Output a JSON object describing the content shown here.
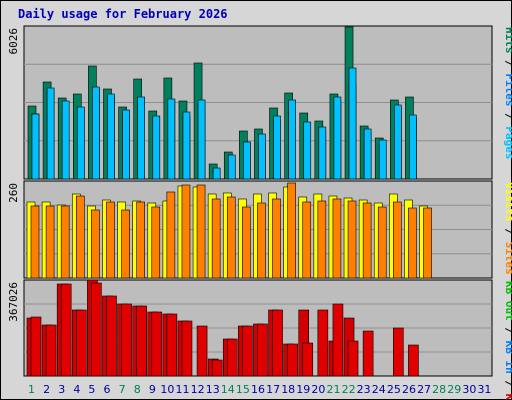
{
  "title": "Daily usage for February 2026",
  "colors": {
    "background": "#d6d6d6",
    "plot": "#bdbdbd",
    "gridline": "#8e8e8e",
    "hits": "#00805c",
    "files": "#0080ff",
    "pages": "#00c0ff",
    "visits": "#ffff00",
    "sites": "#ff8000",
    "kb_in": "#00c000",
    "kb_out": "#e00000",
    "kb_f": "#d00000",
    "weekend_day": "#00805c",
    "weekday_day": "#0000a0",
    "title": "#0000bb"
  },
  "chart_data": [
    {
      "type": "bar",
      "name": "hits-files-pages",
      "ymax_label": "6026",
      "ylim": [
        0,
        6026
      ],
      "legend": [
        {
          "label": "Pages",
          "color": "#00c0ff"
        },
        {
          "label": "Files",
          "color": "#0080ff"
        },
        {
          "label": "Hits",
          "color": "#00805c"
        }
      ],
      "separator": "/",
      "series": [
        {
          "name": "Hits",
          "values": [
            2870,
            3820,
            3190,
            3340,
            4440,
            3550,
            2840,
            3950,
            2660,
            3960,
            3060,
            4580,
            580,
            1070,
            1900,
            1960,
            2790,
            3390,
            2610,
            2270,
            3340,
            5990,
            2090,
            1600,
            3120,
            3210,
            0,
            0
          ]
        },
        {
          "name": "Files",
          "values": [
            2570,
            3480,
            3020,
            2810,
            3580,
            3230,
            2550,
            3010,
            2440,
            3100,
            2490,
            2900,
            360,
            920,
            1440,
            1430,
            2330,
            2680,
            2210,
            1880,
            3060,
            3760,
            1840,
            1370,
            2850,
            2400,
            0,
            0
          ]
        },
        {
          "name": "Pages",
          "values": [
            2570,
            3570,
            3080,
            2830,
            3630,
            3340,
            2710,
            3220,
            2500,
            3170,
            2640,
            3130,
            430,
            960,
            1470,
            1780,
            2480,
            3120,
            2240,
            2040,
            3240,
            4360,
            1960,
            1520,
            2930,
            2540,
            0,
            0
          ]
        }
      ]
    },
    {
      "type": "bar",
      "name": "visits-sites",
      "ymax_label": "260",
      "ylim": [
        0,
        260
      ],
      "legend": [
        {
          "label": "Sites",
          "color": "#ff8000"
        },
        {
          "label": "Visits",
          "color": "#ffff00"
        }
      ],
      "separator": "/",
      "series": [
        {
          "name": "Visits",
          "values": [
            204,
            204,
            196,
            225,
            192,
            210,
            205,
            206,
            200,
            207,
            247,
            243,
            226,
            228,
            211,
            226,
            228,
            243,
            218,
            225,
            219,
            215,
            208,
            200,
            224,
            208,
            194,
            0
          ]
        },
        {
          "name": "Sites",
          "values": [
            192,
            192,
            194,
            221,
            183,
            204,
            182,
            205,
            189,
            231,
            248,
            248,
            213,
            217,
            190,
            201,
            213,
            254,
            205,
            207,
            211,
            206,
            202,
            191,
            203,
            187,
            188,
            0
          ]
        }
      ]
    },
    {
      "type": "bar",
      "name": "kbytes",
      "ymax_label": "367026",
      "ylim": [
        0,
        367026
      ],
      "legend": [
        {
          "label": "KB F",
          "color": "#d00000"
        },
        {
          "label": "KB In",
          "color": "#0080ff"
        },
        {
          "label": "KB Out",
          "color": "#00c000"
        }
      ],
      "separator": "/",
      "series": [
        {
          "name": "KB F",
          "values": [
            222000,
            194000,
            350000,
            252000,
            375000,
            305000,
            275000,
            268000,
            245000,
            238000,
            211000,
            0,
            65000,
            142000,
            193000,
            198000,
            252000,
            123000,
            251000,
            0,
            132000,
            221000,
            0,
            0,
            0,
            0,
            0,
            0
          ]
        },
        {
          "name": "KB In",
          "values": [
            0,
            0,
            0,
            0,
            0,
            0,
            0,
            0,
            0,
            0,
            0,
            0,
            0,
            0,
            0,
            0,
            0,
            0,
            0,
            0,
            0,
            0,
            0,
            0,
            0,
            0,
            0,
            0
          ]
        },
        {
          "name": "KB Out",
          "values": [
            226000,
            194000,
            350000,
            252000,
            357000,
            305000,
            275000,
            268000,
            245000,
            238000,
            211000,
            190000,
            62000,
            142000,
            193000,
            198000,
            252000,
            123000,
            125000,
            252000,
            274000,
            132000,
            173000,
            0,
            182000,
            118000,
            0,
            0
          ]
        }
      ]
    }
  ],
  "x_axis": {
    "days": [
      "1",
      "2",
      "3",
      "4",
      "5",
      "6",
      "7",
      "8",
      "9",
      "10",
      "11",
      "12",
      "13",
      "14",
      "15",
      "16",
      "17",
      "18",
      "19",
      "20",
      "21",
      "22",
      "23",
      "24",
      "25",
      "26",
      "27",
      "28",
      "29",
      "30",
      "31"
    ],
    "weekend": [
      1,
      7,
      8,
      14,
      15,
      21,
      22,
      28,
      29
    ]
  }
}
